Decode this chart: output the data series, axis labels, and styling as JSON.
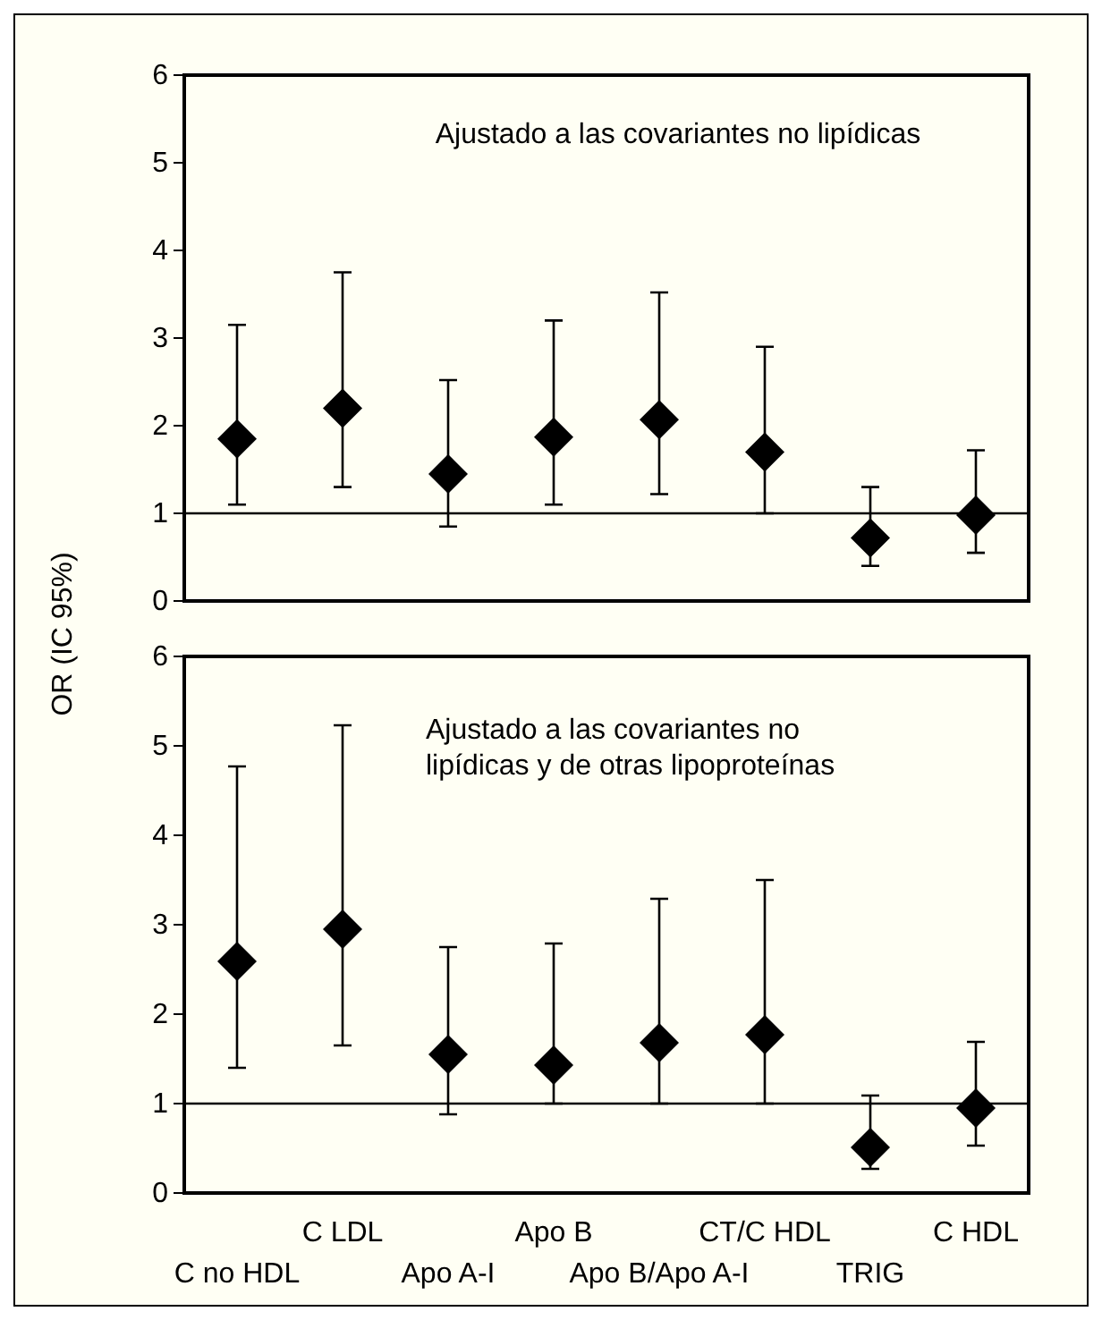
{
  "chart_data": [
    {
      "type": "scatter",
      "ylabel": "OR (IC 95%)",
      "annotations": [
        "Ajustado a las covariantes no lipídicas"
      ],
      "categories": [
        null,
        null,
        null,
        null,
        null,
        null,
        null,
        null
      ],
      "marker": "diamond",
      "grid": false,
      "ylim": [
        0,
        6
      ],
      "yticks": [
        0,
        1,
        2,
        3,
        4,
        5,
        6
      ],
      "ref_lines": [
        {
          "axis": "y",
          "value": 1,
          "color": "#000000"
        }
      ],
      "series": [
        {
          "color": "#000000",
          "values": [
            1.85,
            2.2,
            1.45,
            1.87,
            2.07,
            1.7,
            0.72,
            0.98
          ],
          "errors": [
            [
              1.1,
              3.15
            ],
            [
              1.3,
              3.75
            ],
            [
              0.85,
              2.52
            ],
            [
              1.1,
              3.2
            ],
            [
              1.22,
              3.52
            ],
            [
              1.0,
              2.9
            ],
            [
              0.4,
              1.3
            ],
            [
              0.55,
              1.72
            ]
          ]
        }
      ]
    },
    {
      "type": "scatter",
      "annotations": [
        "Ajustado a las covariantes no lipídicas y de otras lipoproteínas"
      ],
      "categories": [
        "C no HDL",
        "C LDL",
        "Apo A-I",
        "Apo B",
        "Apo B/Apo A-I",
        "CT/C HDL",
        "TRIG",
        "C HDL"
      ],
      "marker": "diamond",
      "grid": false,
      "ylim": [
        0,
        6
      ],
      "yticks": [
        0,
        1,
        2,
        3,
        4,
        5,
        6
      ],
      "ref_lines": [
        {
          "axis": "y",
          "value": 1,
          "color": "#000000"
        }
      ],
      "series": [
        {
          "color": "#000000",
          "values": [
            2.59,
            2.95,
            1.55,
            1.43,
            1.68,
            1.77,
            0.51,
            0.95
          ],
          "errors": [
            [
              1.4,
              4.77
            ],
            [
              1.65,
              5.23
            ],
            [
              0.88,
              2.75
            ],
            [
              1.0,
              2.79
            ],
            [
              1.0,
              3.29
            ],
            [
              1.0,
              3.5
            ],
            [
              0.27,
              1.09
            ],
            [
              0.53,
              1.69
            ]
          ]
        }
      ]
    }
  ]
}
